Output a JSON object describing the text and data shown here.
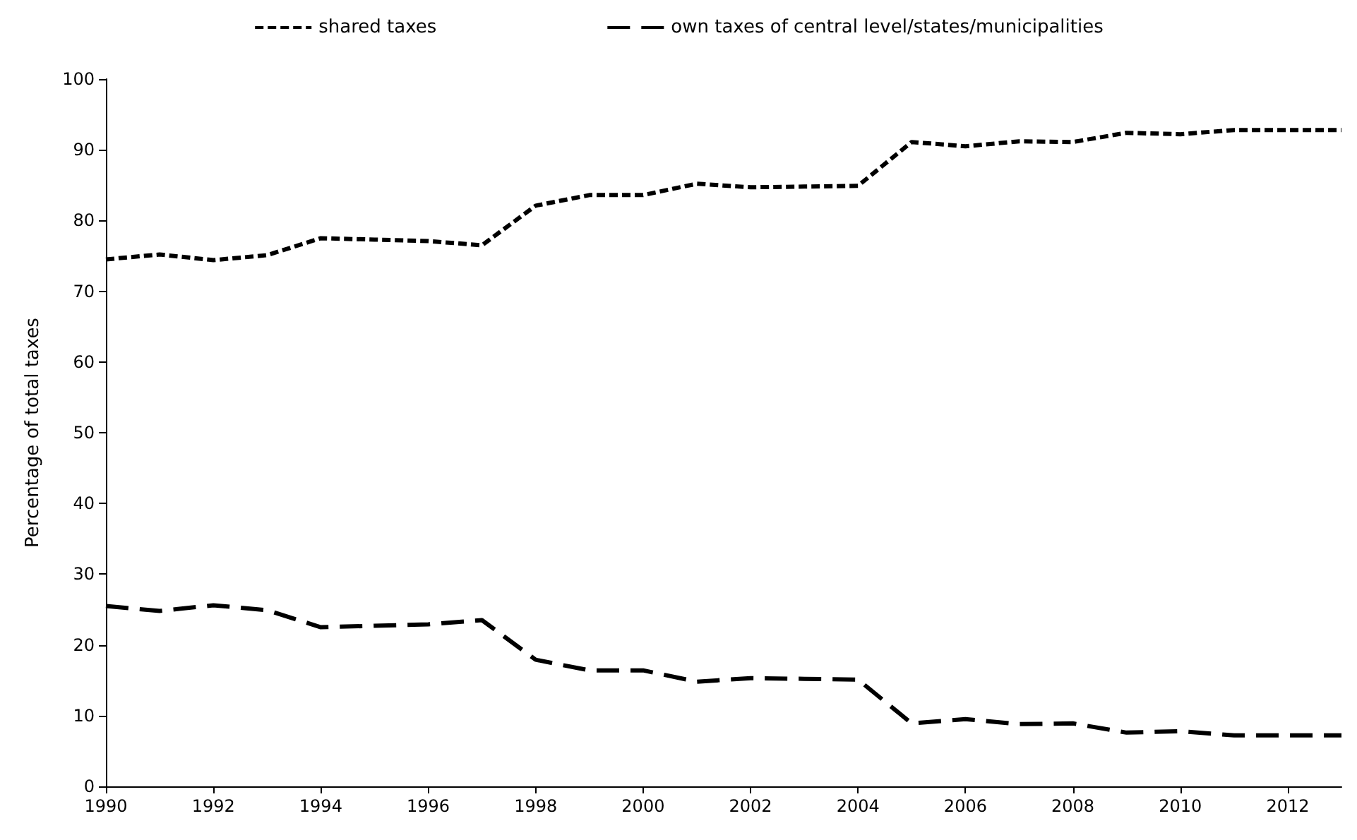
{
  "chart_data": {
    "type": "line",
    "ylabel": "Percentage of total taxes",
    "x": [
      1990,
      1991,
      1992,
      1993,
      1994,
      1995,
      1996,
      1997,
      1998,
      1999,
      2000,
      2001,
      2002,
      2003,
      2004,
      2005,
      2006,
      2007,
      2008,
      2009,
      2010,
      2011,
      2012,
      2013
    ],
    "series": [
      {
        "name": "shared taxes",
        "color": "#000000",
        "line_style": "dotted",
        "values": [
          74.5,
          75.2,
          74.4,
          75.1,
          77.5,
          77.3,
          77.1,
          76.5,
          82.1,
          83.6,
          83.6,
          85.2,
          84.7,
          84.8,
          84.9,
          91.1,
          90.5,
          91.2,
          91.1,
          92.4,
          92.2,
          92.8,
          92.8,
          92.8
        ]
      },
      {
        "name": "own taxes of central level/states/municipalities",
        "color": "#000000",
        "line_style": "dashed",
        "values": [
          25.5,
          24.8,
          25.6,
          24.9,
          22.5,
          22.7,
          22.9,
          23.5,
          17.9,
          16.4,
          16.4,
          14.8,
          15.3,
          15.2,
          15.1,
          8.9,
          9.5,
          8.8,
          8.9,
          7.6,
          7.8,
          7.2,
          7.2,
          7.2
        ]
      }
    ],
    "xlim": [
      1990,
      2013
    ],
    "xticks": [
      1990,
      1992,
      1994,
      1996,
      1998,
      2000,
      2002,
      2004,
      2006,
      2008,
      2010,
      2012
    ],
    "ylim": [
      0,
      100
    ],
    "yticks": [
      0,
      10,
      20,
      30,
      40,
      50,
      60,
      70,
      80,
      90,
      100
    ],
    "grid": false,
    "legend": "top",
    "marker": "none"
  }
}
